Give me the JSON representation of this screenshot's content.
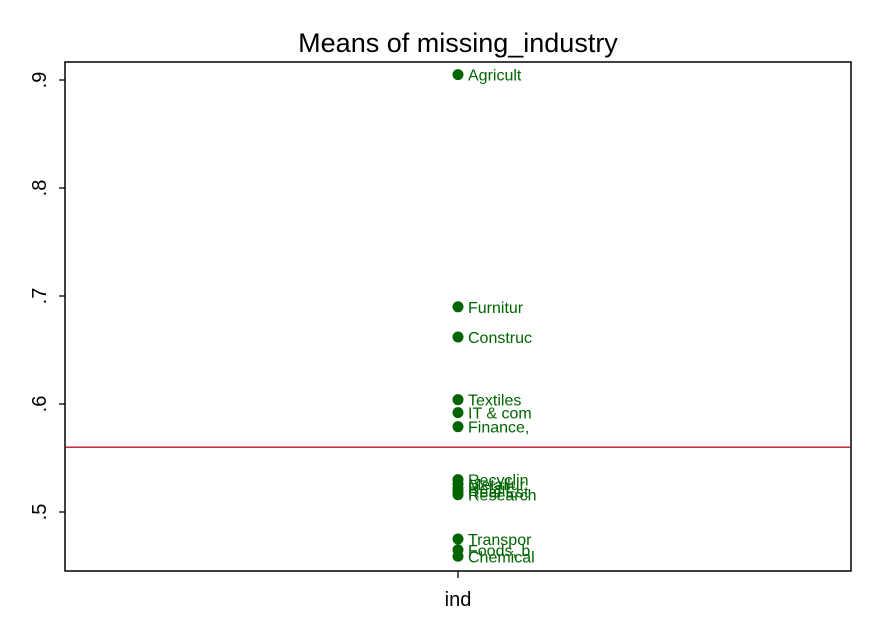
{
  "chart_data": {
    "type": "scatter",
    "title": "Means of missing_industry",
    "xlabel": "ind",
    "ylabel": "",
    "ylim": [
      0.45,
      0.92
    ],
    "yticks": [
      ".5",
      ".6",
      ".7",
      ".8",
      ".9"
    ],
    "ytick_values": [
      0.5,
      0.6,
      0.7,
      0.8,
      0.9
    ],
    "grid": false,
    "mean_line": 0.56,
    "points": [
      {
        "label": "Agricult",
        "y": 0.905
      },
      {
        "label": "Furnitur",
        "y": 0.69
      },
      {
        "label": "Construc",
        "y": 0.662
      },
      {
        "label": "Textiles",
        "y": 0.604
      },
      {
        "label": "IT & com",
        "y": 0.592
      },
      {
        "label": "Finance,",
        "y": 0.579
      },
      {
        "label": "Recyclin",
        "y": 0.53
      },
      {
        "label": "Metallur",
        "y": 0.526
      },
      {
        "label": "Retail,",
        "y": 0.522
      },
      {
        "label": "Real Est",
        "y": 0.519
      },
      {
        "label": "Research",
        "y": 0.516
      },
      {
        "label": "Transpor",
        "y": 0.475
      },
      {
        "label": "Foods, b",
        "y": 0.465
      },
      {
        "label": "Chemical",
        "y": 0.459
      }
    ],
    "colors": {
      "marker": "#006400",
      "mean_line": "#c8102e",
      "axis": "#000000"
    }
  }
}
